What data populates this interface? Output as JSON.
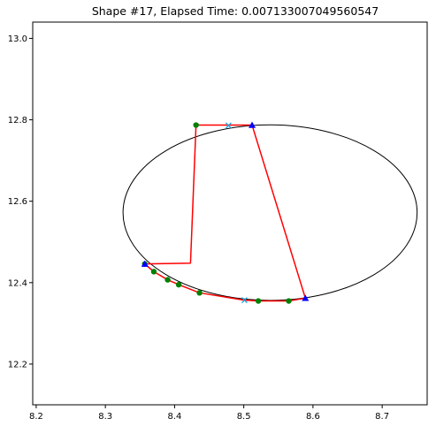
{
  "chart_data": {
    "type": "scatter",
    "title": "Shape #17, Elapsed Time: 0.007133007049560547",
    "xlabel": "",
    "ylabel": "",
    "xlim": [
      8.195,
      8.765
    ],
    "ylim": [
      12.1,
      13.04
    ],
    "x_ticks": [
      8.2,
      8.3,
      8.4,
      8.5,
      8.6,
      8.7
    ],
    "x_tick_labels": [
      "8.2",
      "8.3",
      "8.4",
      "8.5",
      "8.6",
      "8.7"
    ],
    "y_ticks": [
      12.2,
      12.4,
      12.6,
      12.8,
      13.0
    ],
    "y_tick_labels": [
      "12.2",
      "12.4",
      "12.6",
      "12.8",
      "13.0"
    ],
    "grid": false,
    "ellipse": {
      "cx": 8.538,
      "cy": 12.572,
      "rx": 0.2125,
      "ry": 0.2155,
      "color": "#000000"
    },
    "path": {
      "color": "#ff0000",
      "points": [
        [
          8.512,
          12.787
        ],
        [
          8.431,
          12.787
        ],
        [
          8.423,
          12.448
        ],
        [
          8.357,
          12.446
        ],
        [
          8.37,
          12.427
        ],
        [
          8.39,
          12.407
        ],
        [
          8.406,
          12.395
        ],
        [
          8.436,
          12.375
        ],
        [
          8.501,
          12.357
        ],
        [
          8.521,
          12.355
        ],
        [
          8.565,
          12.355
        ],
        [
          8.589,
          12.362
        ],
        [
          8.512,
          12.787
        ]
      ]
    },
    "green_points": {
      "color": "#008000",
      "points": [
        [
          8.431,
          12.787
        ],
        [
          8.357,
          12.446
        ],
        [
          8.37,
          12.427
        ],
        [
          8.39,
          12.407
        ],
        [
          8.406,
          12.395
        ],
        [
          8.436,
          12.375
        ],
        [
          8.521,
          12.355
        ],
        [
          8.565,
          12.355
        ]
      ]
    },
    "blue_triangles": {
      "color": "#0000ff",
      "points": [
        [
          8.512,
          12.787
        ],
        [
          8.357,
          12.446
        ],
        [
          8.589,
          12.362
        ]
      ]
    },
    "cyan_crosses": {
      "color": "#1fa8e0",
      "points": [
        [
          8.478,
          12.786
        ],
        [
          8.501,
          12.357
        ]
      ]
    }
  }
}
